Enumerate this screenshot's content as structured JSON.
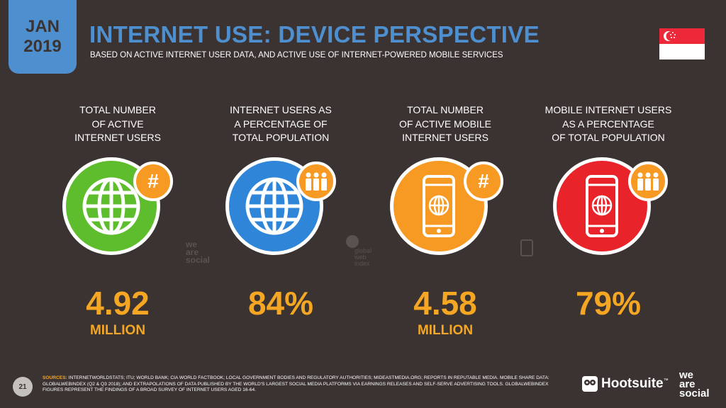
{
  "header": {
    "date_month": "JAN",
    "date_year": "2019",
    "title": "INTERNET USE: DEVICE PERSPECTIVE",
    "subtitle": "BASED ON ACTIVE INTERNET USER DATA, AND ACTIVE USE OF INTERNET-POWERED MOBILE SERVICES",
    "flag": "singapore-flag-icon"
  },
  "colors": {
    "background": "#3a3331",
    "accent_blue": "#4e8fd0",
    "value_orange": "#f5a623",
    "green": "#5ebd2c",
    "blue": "#2f86d8",
    "orange": "#f79a23",
    "red": "#e8232a"
  },
  "stats": [
    {
      "heading_lines": [
        "TOTAL NUMBER",
        "OF ACTIVE",
        "INTERNET USERS"
      ],
      "value": "4.92",
      "unit": "MILLION",
      "icon": "globe-icon",
      "badge_icon": "hash-icon",
      "circle_color": "#5ebd2c"
    },
    {
      "heading_lines": [
        "INTERNET USERS AS",
        "A PERCENTAGE OF",
        "TOTAL POPULATION"
      ],
      "value": "84%",
      "unit": "",
      "icon": "globe-icon",
      "badge_icon": "people-icon",
      "circle_color": "#2f86d8"
    },
    {
      "heading_lines": [
        "TOTAL NUMBER",
        "OF ACTIVE MOBILE",
        "INTERNET USERS"
      ],
      "value": "4.58",
      "unit": "MILLION",
      "icon": "mobile-globe-icon",
      "badge_icon": "hash-icon",
      "circle_color": "#f79a23"
    },
    {
      "heading_lines": [
        "MOBILE INTERNET USERS",
        "AS A PERCENTAGE",
        "OF TOTAL POPULATION"
      ],
      "value": "79%",
      "unit": "",
      "icon": "mobile-globe-icon",
      "badge_icon": "people-icon",
      "circle_color": "#e8232a"
    }
  ],
  "watermarks": {
    "was_lines": [
      "we",
      "are",
      "social"
    ],
    "gwi_lines": [
      "global",
      "web",
      "index"
    ]
  },
  "footer": {
    "page_number": "21",
    "sources_label": "SOURCES:",
    "sources_text": "INTERNETWORLDSTATS; ITU; WORLD BANK; CIA WORLD FACTBOOK; LOCAL GOVERNMENT BODIES AND REGULATORY AUTHORITIES; MIDEASTMEDIA.ORG; REPORTS IN REPUTABLE MEDIA. MOBILE SHARE DATA: GLOBALWEBINDEX (Q2 & Q3 2018); AND EXTRAPOLATIONS OF DATA PUBLISHED BY THE WORLD'S LARGEST SOCIAL MEDIA PLATFORMS VIA EARNINGS RELEASES AND SELF-SERVE ADVERTISING TOOLS. GLOBALWEBINDEX FIGURES REPRESENT THE FINDINGS OF A BROAD SURVEY OF INTERNET USERS AGED 16-64.",
    "hootsuite": "Hootsuite",
    "tm": "™",
    "was_lines": [
      "we",
      "are",
      "social"
    ]
  }
}
